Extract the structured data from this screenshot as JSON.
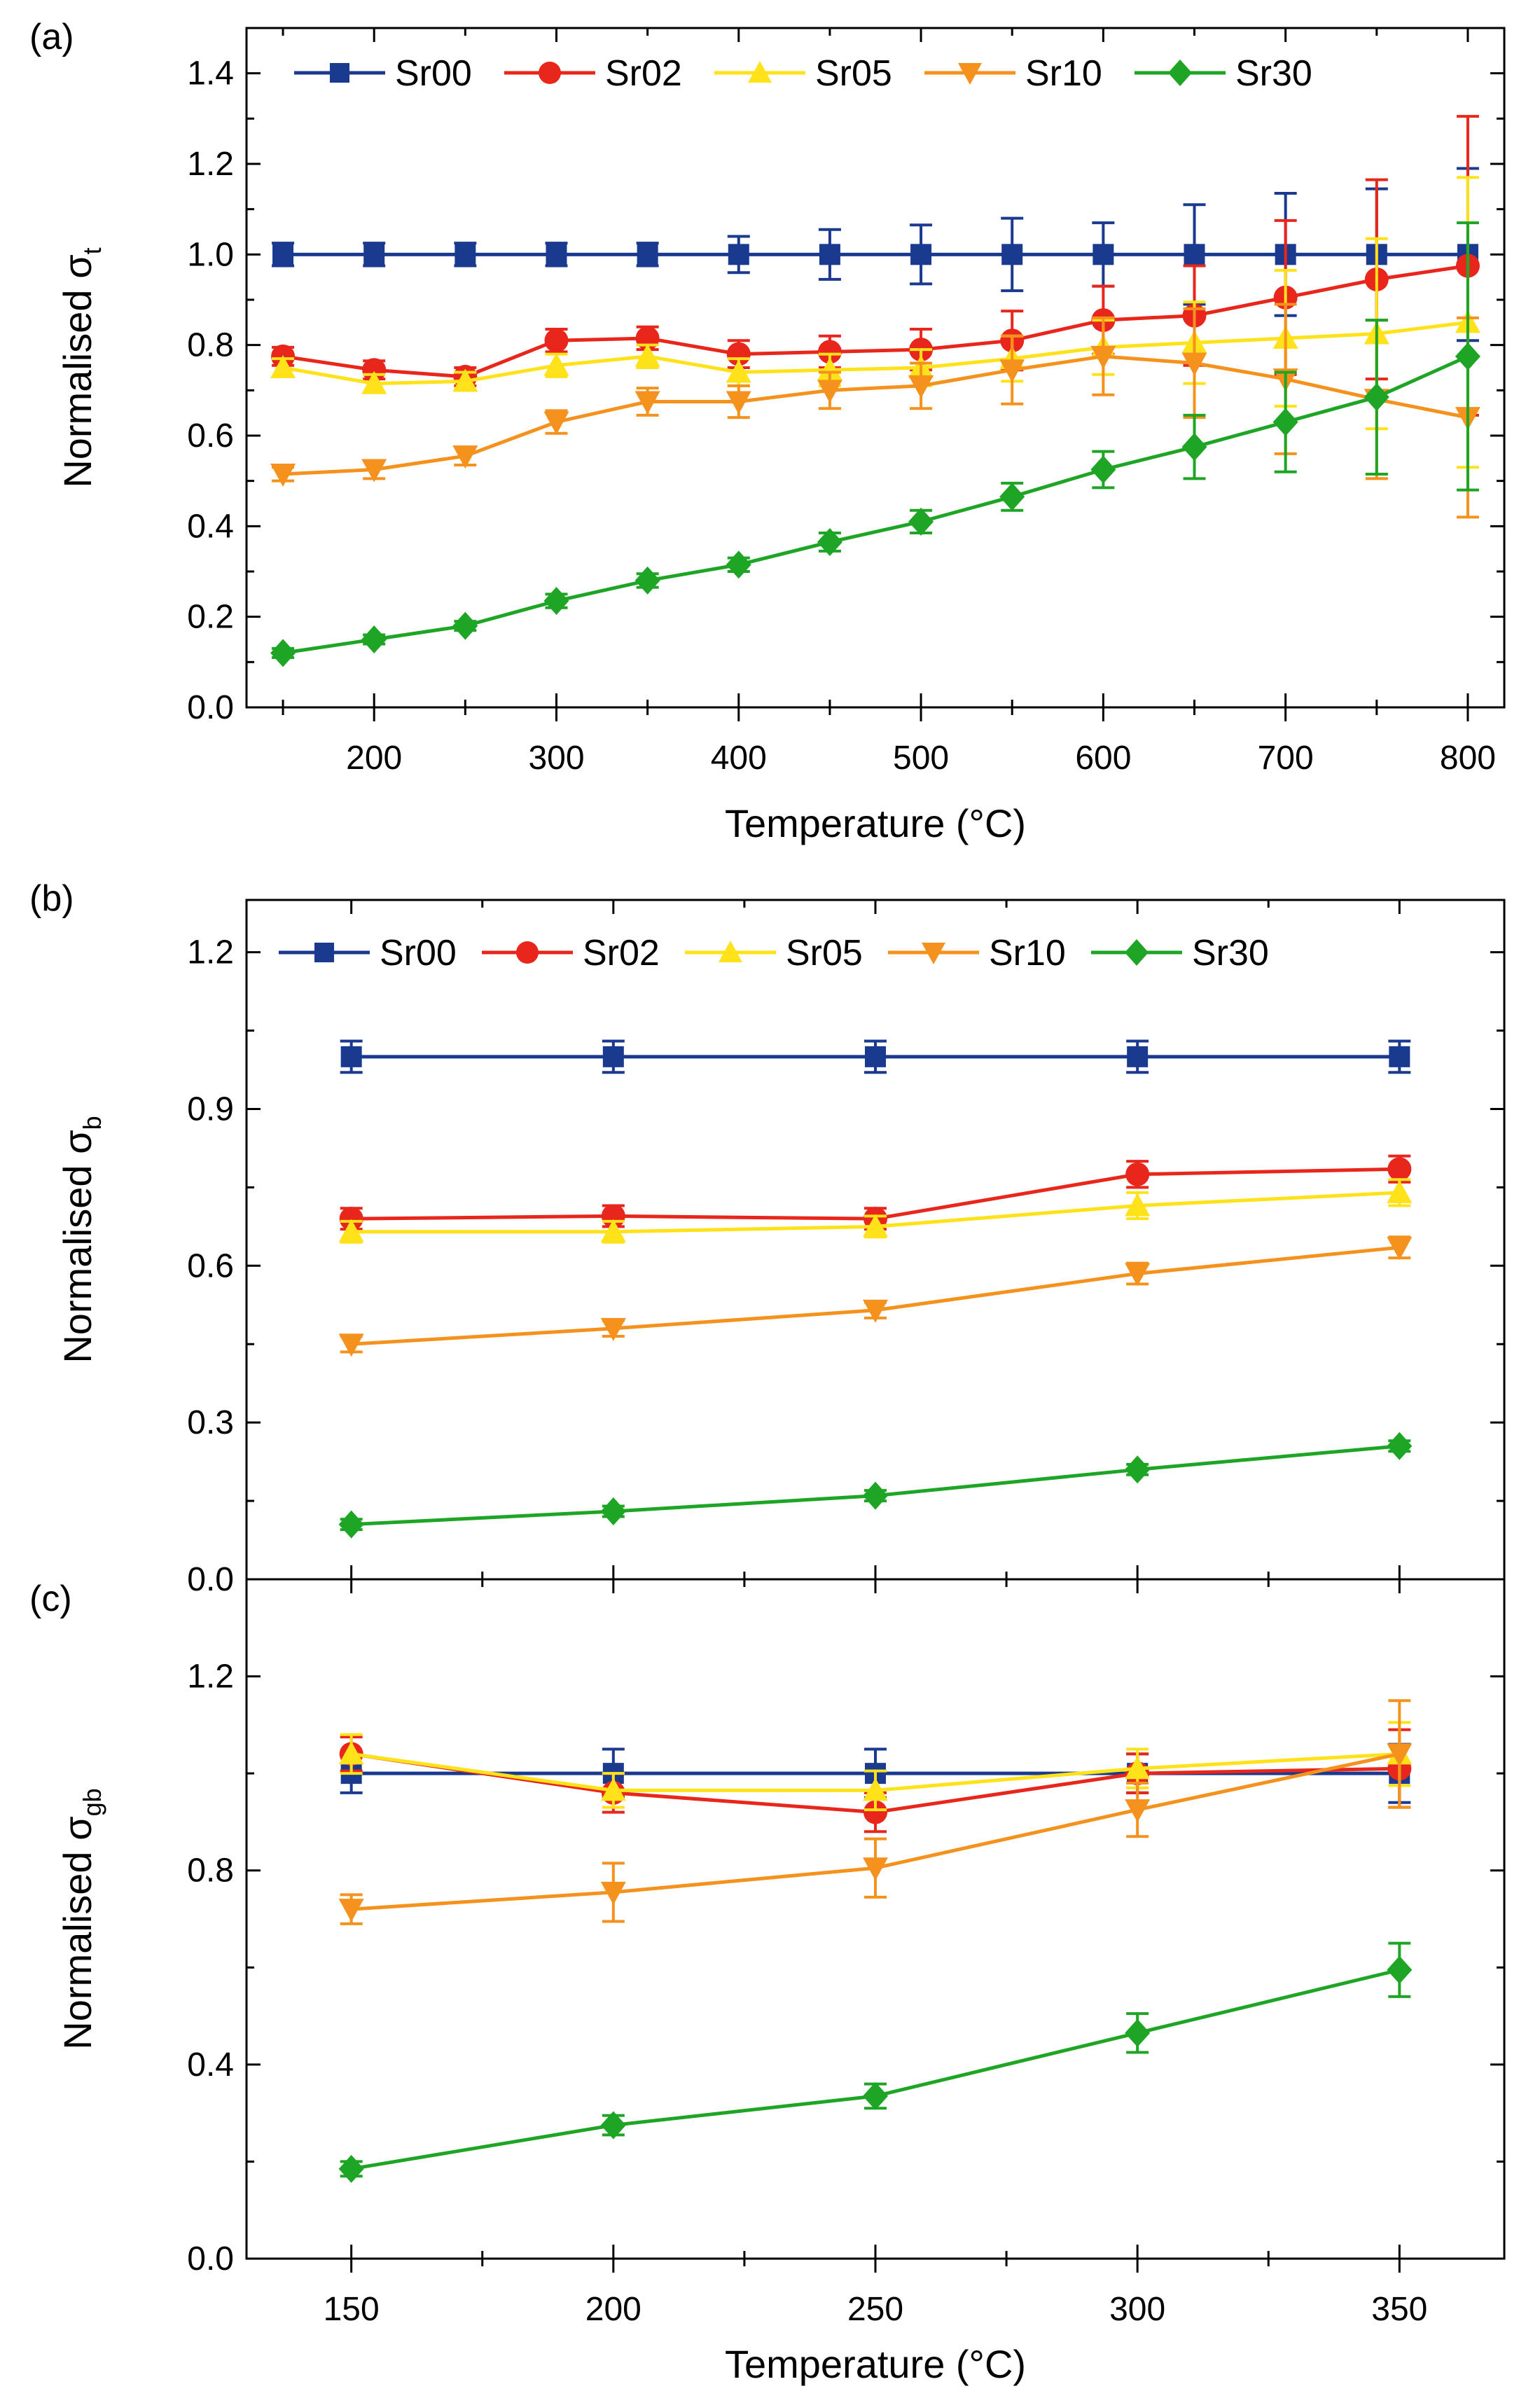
{
  "colors": {
    "Sr00": "#1a3a8f",
    "Sr02": "#e8261c",
    "Sr05": "#ffe21a",
    "Sr10": "#f5921e",
    "Sr30": "#1fa525"
  },
  "chart_data": [
    {
      "id": "a",
      "type": "line",
      "panel_label": "(a)",
      "xlabel": "Temperature (°C)",
      "ylabel": "Normalised σ",
      "ylabel_sub": "t",
      "xlim": [
        130,
        820
      ],
      "ylim": [
        0.0,
        1.5
      ],
      "x_ticks": [
        200,
        300,
        400,
        500,
        600,
        700,
        800
      ],
      "x_tick_labels": [
        "200",
        "300",
        "400",
        "500",
        "600",
        "700",
        "800"
      ],
      "y_ticks": [
        0.0,
        0.2,
        0.4,
        0.6,
        0.8,
        1.0,
        1.2,
        1.4
      ],
      "y_tick_labels": [
        "0.0",
        "0.2",
        "0.4",
        "0.6",
        "0.8",
        "1.0",
        "1.2",
        "1.4"
      ],
      "legend_position": "top",
      "x": [
        150,
        200,
        250,
        300,
        350,
        400,
        450,
        500,
        550,
        600,
        650,
        700,
        750,
        800
      ],
      "series": [
        {
          "name": "Sr00",
          "marker": "square",
          "values": [
            1.0,
            1.0,
            1.0,
            1.0,
            1.0,
            1.0,
            1.0,
            1.0,
            1.0,
            1.0,
            1.0,
            1.0,
            1.0,
            1.0
          ],
          "errors": [
            0.025,
            0.025,
            0.025,
            0.025,
            0.025,
            0.04,
            0.055,
            0.065,
            0.08,
            0.07,
            0.11,
            0.135,
            0.145,
            0.19
          ]
        },
        {
          "name": "Sr02",
          "marker": "circle",
          "values": [
            0.775,
            0.745,
            0.73,
            0.81,
            0.815,
            0.78,
            0.785,
            0.79,
            0.81,
            0.855,
            0.865,
            0.905,
            0.945,
            0.975
          ],
          "errors": [
            0.02,
            0.02,
            0.02,
            0.025,
            0.025,
            0.03,
            0.035,
            0.045,
            0.065,
            0.075,
            0.11,
            0.17,
            0.22,
            0.33
          ]
        },
        {
          "name": "Sr05",
          "marker": "triangle-up",
          "values": [
            0.75,
            0.715,
            0.72,
            0.755,
            0.775,
            0.74,
            0.745,
            0.75,
            0.77,
            0.795,
            0.805,
            0.815,
            0.825,
            0.85
          ],
          "errors": [
            0.02,
            0.02,
            0.02,
            0.025,
            0.025,
            0.03,
            0.035,
            0.04,
            0.05,
            0.06,
            0.09,
            0.15,
            0.21,
            0.32
          ]
        },
        {
          "name": "Sr10",
          "marker": "triangle-down",
          "values": [
            0.515,
            0.525,
            0.555,
            0.63,
            0.675,
            0.675,
            0.7,
            0.71,
            0.745,
            0.775,
            0.76,
            0.725,
            0.68,
            0.64
          ],
          "errors": [
            0.015,
            0.02,
            0.02,
            0.025,
            0.03,
            0.035,
            0.04,
            0.05,
            0.075,
            0.085,
            0.12,
            0.165,
            0.175,
            0.22
          ]
        },
        {
          "name": "Sr30",
          "marker": "diamond",
          "values": [
            0.12,
            0.15,
            0.18,
            0.235,
            0.28,
            0.315,
            0.365,
            0.41,
            0.465,
            0.525,
            0.575,
            0.63,
            0.685,
            0.775
          ],
          "errors": [
            0.01,
            0.01,
            0.01,
            0.015,
            0.015,
            0.015,
            0.02,
            0.025,
            0.03,
            0.04,
            0.07,
            0.11,
            0.17,
            0.295
          ]
        }
      ]
    },
    {
      "id": "b",
      "type": "line",
      "panel_label": "(b)",
      "xlabel": "",
      "ylabel": "Normalised σ",
      "ylabel_sub": "b",
      "xlim": [
        130,
        370
      ],
      "ylim": [
        0.0,
        1.3
      ],
      "x_ticks": [],
      "x_tick_labels": [],
      "y_ticks": [
        0.0,
        0.3,
        0.6,
        0.9,
        1.2
      ],
      "y_tick_labels": [
        "0.0",
        "0.3",
        "0.6",
        "0.9",
        "1.2"
      ],
      "legend_position": "top",
      "x": [
        150,
        200,
        250,
        300,
        350
      ],
      "series": [
        {
          "name": "Sr00",
          "marker": "square",
          "values": [
            1.0,
            1.0,
            1.0,
            1.0,
            1.0
          ],
          "errors": [
            0.03,
            0.03,
            0.03,
            0.03,
            0.03
          ]
        },
        {
          "name": "Sr02",
          "marker": "circle",
          "values": [
            0.69,
            0.695,
            0.69,
            0.775,
            0.785
          ],
          "errors": [
            0.02,
            0.02,
            0.02,
            0.025,
            0.025
          ]
        },
        {
          "name": "Sr05",
          "marker": "triangle-up",
          "values": [
            0.665,
            0.665,
            0.675,
            0.715,
            0.74
          ],
          "errors": [
            0.02,
            0.02,
            0.02,
            0.025,
            0.025
          ]
        },
        {
          "name": "Sr10",
          "marker": "triangle-down",
          "values": [
            0.45,
            0.48,
            0.515,
            0.585,
            0.635
          ],
          "errors": [
            0.015,
            0.015,
            0.015,
            0.02,
            0.02
          ]
        },
        {
          "name": "Sr30",
          "marker": "diamond",
          "values": [
            0.105,
            0.13,
            0.16,
            0.21,
            0.255
          ],
          "errors": [
            0.01,
            0.01,
            0.01,
            0.01,
            0.01
          ]
        }
      ]
    },
    {
      "id": "c",
      "type": "line",
      "panel_label": "(c)",
      "xlabel": "Temperature (°C)",
      "ylabel": "Normalised σ",
      "ylabel_sub": "gb",
      "xlim": [
        130,
        370
      ],
      "ylim": [
        0.0,
        1.4
      ],
      "x_ticks": [
        150,
        200,
        250,
        300,
        350
      ],
      "x_tick_labels": [
        "150",
        "200",
        "250",
        "300",
        "350"
      ],
      "y_ticks": [
        0.0,
        0.4,
        0.8,
        1.2
      ],
      "y_tick_labels": [
        "0.0",
        "0.4",
        "0.8",
        "1.2"
      ],
      "legend_position": "none",
      "x": [
        150,
        200,
        250,
        300,
        350
      ],
      "series": [
        {
          "name": "Sr00",
          "marker": "square",
          "values": [
            1.0,
            1.0,
            1.0,
            1.0,
            1.0
          ],
          "errors": [
            0.04,
            0.05,
            0.05,
            0.04,
            0.06
          ]
        },
        {
          "name": "Sr02",
          "marker": "circle",
          "values": [
            1.04,
            0.96,
            0.92,
            1.0,
            1.01
          ],
          "errors": [
            0.035,
            0.04,
            0.04,
            0.04,
            0.08
          ]
        },
        {
          "name": "Sr05",
          "marker": "triangle-up",
          "values": [
            1.04,
            0.965,
            0.965,
            1.01,
            1.04
          ],
          "errors": [
            0.04,
            0.035,
            0.04,
            0.04,
            0.065
          ]
        },
        {
          "name": "Sr10",
          "marker": "triangle-down",
          "values": [
            0.72,
            0.755,
            0.805,
            0.925,
            1.04
          ],
          "errors": [
            0.03,
            0.06,
            0.06,
            0.055,
            0.11
          ]
        },
        {
          "name": "Sr30",
          "marker": "diamond",
          "values": [
            0.185,
            0.275,
            0.335,
            0.465,
            0.595
          ],
          "errors": [
            0.015,
            0.02,
            0.025,
            0.04,
            0.055
          ]
        }
      ]
    }
  ]
}
